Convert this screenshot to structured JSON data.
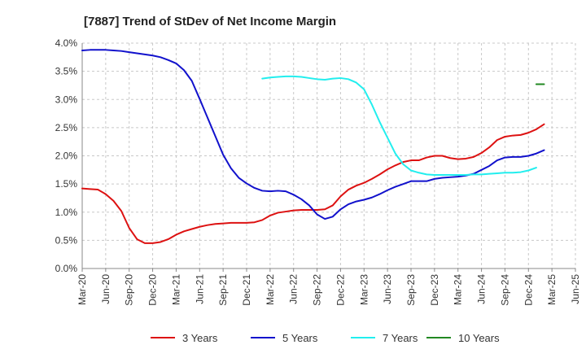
{
  "chart_data": {
    "type": "line",
    "title": "[7887]  Trend of StDev of Net Income Margin",
    "xlabel": "",
    "ylabel": "",
    "x_tick_labels": [
      "Mar-20",
      "Jun-20",
      "Sep-20",
      "Dec-20",
      "Mar-21",
      "Jun-21",
      "Sep-21",
      "Dec-21",
      "Mar-22",
      "Jun-22",
      "Sep-22",
      "Dec-22",
      "Mar-23",
      "Jun-23",
      "Sep-23",
      "Dec-23",
      "Mar-24",
      "Jun-24",
      "Sep-24",
      "Dec-24",
      "Mar-25",
      "Jun-25"
    ],
    "y_ticks": [
      0,
      0.5,
      1.0,
      1.5,
      2.0,
      2.5,
      3.0,
      3.5,
      4.0
    ],
    "y_tick_labels": [
      "0.0%",
      "0.5%",
      "1.0%",
      "1.5%",
      "2.0%",
      "2.5%",
      "3.0%",
      "3.5%",
      "4.0%"
    ],
    "ylim": [
      0,
      4.0
    ],
    "grid": true,
    "legend_position": "bottom",
    "series": [
      {
        "name": "3 Years",
        "color": "#dd1111",
        "start_index": 0,
        "values": [
          1.42,
          1.41,
          1.4,
          1.32,
          1.2,
          1.02,
          0.72,
          0.52,
          0.45,
          0.45,
          0.47,
          0.52,
          0.6,
          0.66,
          0.7,
          0.74,
          0.77,
          0.79,
          0.8,
          0.81,
          0.81,
          0.81,
          0.82,
          0.86,
          0.94,
          0.99,
          1.01,
          1.03,
          1.04,
          1.04,
          1.04,
          1.05,
          1.12,
          1.28,
          1.4,
          1.47,
          1.52,
          1.59,
          1.67,
          1.76,
          1.83,
          1.89,
          1.92,
          1.92,
          1.97,
          2.0,
          2.0,
          1.96,
          1.94,
          1.95,
          1.98,
          2.05,
          2.15,
          2.28,
          2.34,
          2.36,
          2.37,
          2.41,
          2.47,
          2.56
        ]
      },
      {
        "name": "5 Years",
        "color": "#1111cc",
        "start_index": 0,
        "values": [
          3.87,
          3.88,
          3.88,
          3.88,
          3.87,
          3.86,
          3.84,
          3.82,
          3.8,
          3.78,
          3.75,
          3.7,
          3.64,
          3.52,
          3.33,
          3.01,
          2.68,
          2.35,
          2.02,
          1.78,
          1.61,
          1.51,
          1.43,
          1.38,
          1.37,
          1.38,
          1.37,
          1.31,
          1.23,
          1.12,
          0.96,
          0.88,
          0.92,
          1.05,
          1.14,
          1.19,
          1.22,
          1.26,
          1.32,
          1.39,
          1.45,
          1.5,
          1.55,
          1.55,
          1.55,
          1.59,
          1.61,
          1.62,
          1.63,
          1.65,
          1.68,
          1.75,
          1.82,
          1.92,
          1.97,
          1.98,
          1.98,
          2.0,
          2.04,
          2.1
        ]
      },
      {
        "name": "7 Years",
        "color": "#22eeee",
        "start_index": 23,
        "values": [
          3.37,
          3.39,
          3.4,
          3.41,
          3.41,
          3.4,
          3.38,
          3.36,
          3.35,
          3.37,
          3.38,
          3.36,
          3.3,
          3.18,
          2.91,
          2.6,
          2.32,
          2.04,
          1.85,
          1.74,
          1.7,
          1.67,
          1.66,
          1.66,
          1.66,
          1.66,
          1.66,
          1.67,
          1.67,
          1.68,
          1.69,
          1.7,
          1.7,
          1.71,
          1.74,
          1.79
        ]
      },
      {
        "name": "10 Years",
        "color": "#228822",
        "start_index": 58,
        "values": [
          3.27,
          3.27
        ]
      }
    ]
  }
}
